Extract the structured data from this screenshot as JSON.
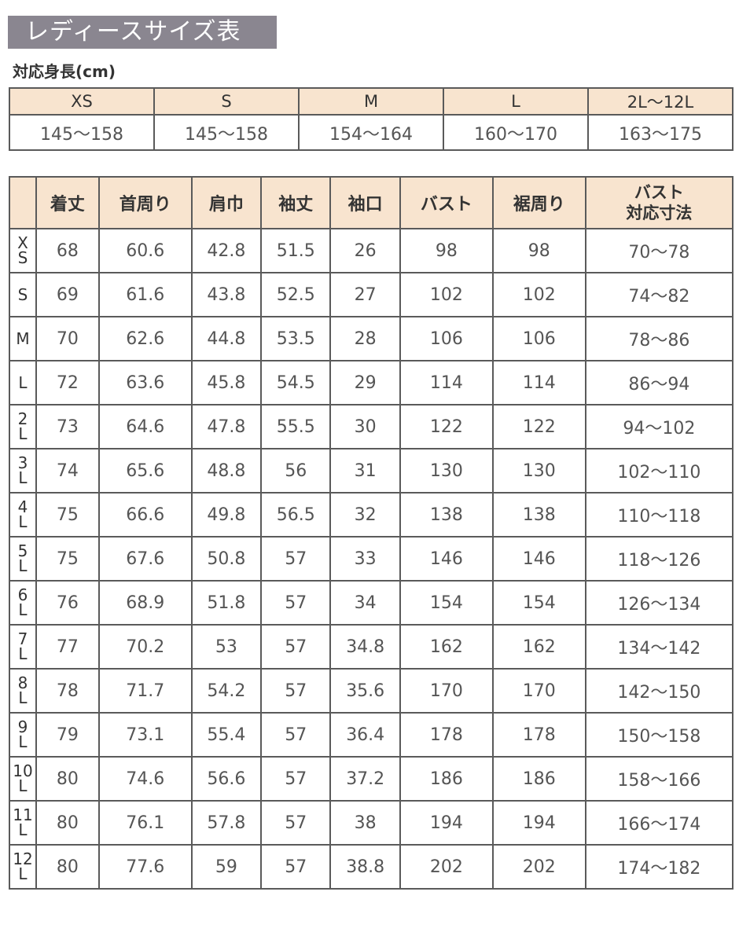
{
  "title": "レディースサイズ表",
  "height_table": {
    "caption": "対応身長(cm)",
    "sizes": [
      "XS",
      "S",
      "M",
      "L",
      "2L〜12L"
    ],
    "heights": [
      "145〜158",
      "145〜158",
      "154〜164",
      "160〜170",
      "163〜175"
    ]
  },
  "size_table": {
    "headers": [
      "着丈",
      "首周り",
      "肩巾",
      "袖丈",
      "袖口",
      "バスト",
      "裾周り"
    ],
    "last_header": [
      "バスト",
      "対応寸法"
    ],
    "rows": [
      {
        "size": [
          "X",
          "S"
        ],
        "values": [
          "68",
          "60.6",
          "42.8",
          "51.5",
          "26",
          "98",
          "98",
          "70〜78"
        ]
      },
      {
        "size": [
          "S"
        ],
        "values": [
          "69",
          "61.6",
          "43.8",
          "52.5",
          "27",
          "102",
          "102",
          "74〜82"
        ]
      },
      {
        "size": [
          "M"
        ],
        "values": [
          "70",
          "62.6",
          "44.8",
          "53.5",
          "28",
          "106",
          "106",
          "78〜86"
        ]
      },
      {
        "size": [
          "L"
        ],
        "values": [
          "72",
          "63.6",
          "45.8",
          "54.5",
          "29",
          "114",
          "114",
          "86〜94"
        ]
      },
      {
        "size": [
          "2",
          "L"
        ],
        "values": [
          "73",
          "64.6",
          "47.8",
          "55.5",
          "30",
          "122",
          "122",
          "94〜102"
        ]
      },
      {
        "size": [
          "3",
          "L"
        ],
        "values": [
          "74",
          "65.6",
          "48.8",
          "56",
          "31",
          "130",
          "130",
          "102〜110"
        ]
      },
      {
        "size": [
          "4",
          "L"
        ],
        "values": [
          "75",
          "66.6",
          "49.8",
          "56.5",
          "32",
          "138",
          "138",
          "110〜118"
        ]
      },
      {
        "size": [
          "5",
          "L"
        ],
        "values": [
          "75",
          "67.6",
          "50.8",
          "57",
          "33",
          "146",
          "146",
          "118〜126"
        ]
      },
      {
        "size": [
          "6",
          "L"
        ],
        "values": [
          "76",
          "68.9",
          "51.8",
          "57",
          "34",
          "154",
          "154",
          "126〜134"
        ]
      },
      {
        "size": [
          "7",
          "L"
        ],
        "values": [
          "77",
          "70.2",
          "53",
          "57",
          "34.8",
          "162",
          "162",
          "134〜142"
        ]
      },
      {
        "size": [
          "8",
          "L"
        ],
        "values": [
          "78",
          "71.7",
          "54.2",
          "57",
          "35.6",
          "170",
          "170",
          "142〜150"
        ]
      },
      {
        "size": [
          "9",
          "L"
        ],
        "values": [
          "79",
          "73.1",
          "55.4",
          "57",
          "36.4",
          "178",
          "178",
          "150〜158"
        ]
      },
      {
        "size": [
          "10",
          "L"
        ],
        "values": [
          "80",
          "74.6",
          "56.6",
          "57",
          "37.2",
          "186",
          "186",
          "158〜166"
        ]
      },
      {
        "size": [
          "11",
          "L"
        ],
        "values": [
          "80",
          "76.1",
          "57.8",
          "57",
          "38",
          "194",
          "194",
          "166〜174"
        ]
      },
      {
        "size": [
          "12",
          "L"
        ],
        "values": [
          "80",
          "77.6",
          "59",
          "57",
          "38.8",
          "202",
          "202",
          "174〜182"
        ]
      }
    ]
  },
  "colors": {
    "title_bg": "#8a8690",
    "header_bg": "#f8e4cf",
    "border": "#5a5a5a"
  }
}
